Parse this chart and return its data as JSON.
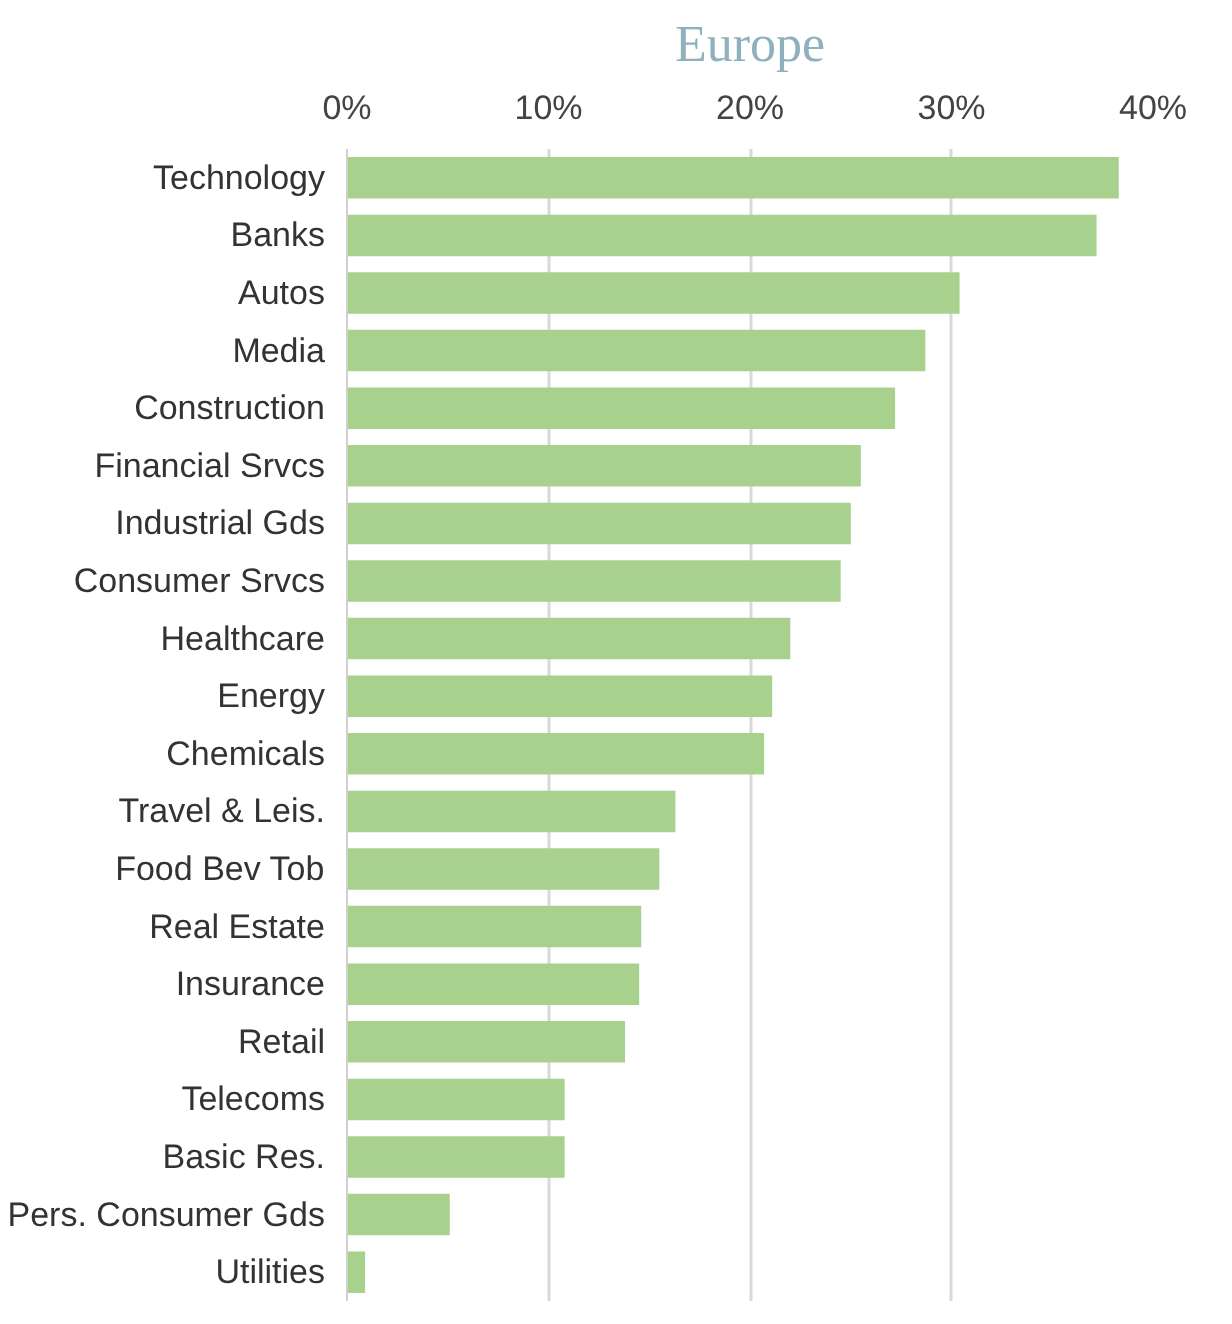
{
  "chart_data": {
    "type": "bar",
    "orientation": "horizontal",
    "title": "Europe",
    "categories": [
      "Technology",
      "Banks",
      "Autos",
      "Media",
      "Construction",
      "Financial Srvcs",
      "Industrial Gds",
      "Consumer Srvcs",
      "Healthcare",
      "Energy",
      "Chemicals",
      "Travel & Leis.",
      "Food Bev Tob",
      "Real Estate",
      "Insurance",
      "Retail",
      "Telecoms",
      "Basic Res.",
      "Pers. Consumer Gds",
      "Utilities"
    ],
    "values": [
      38.3,
      37.2,
      30.4,
      28.7,
      27.2,
      25.5,
      25.0,
      24.5,
      22.0,
      21.1,
      20.7,
      16.3,
      15.5,
      14.6,
      14.5,
      13.8,
      10.8,
      10.8,
      5.1,
      0.9
    ],
    "color": "#a9d18e",
    "xlim": [
      0,
      40
    ],
    "xticks": [
      {
        "value": 0,
        "label": "0%"
      },
      {
        "value": 10,
        "label": "10%"
      },
      {
        "value": 20,
        "label": "20%"
      },
      {
        "value": 30,
        "label": "30%"
      },
      {
        "value": 40,
        "label": "40%"
      }
    ],
    "grid": "x"
  }
}
